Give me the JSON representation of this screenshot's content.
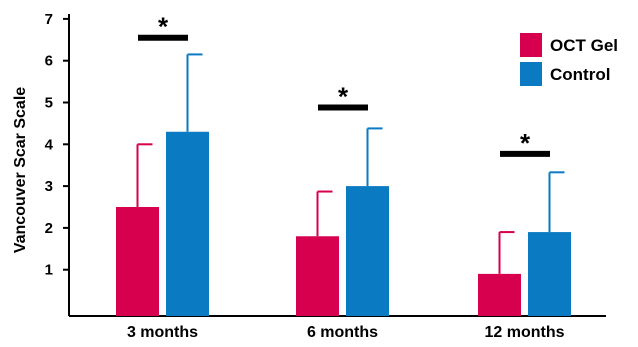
{
  "chart_data": {
    "type": "bar",
    "categories": [
      "3 months",
      "6 months",
      "12 months"
    ],
    "series": [
      {
        "name": "OCT Gel",
        "color": "#d6004f",
        "values": [
          2.5,
          1.8,
          0.9
        ],
        "error_upper": [
          4.0,
          2.87,
          1.9
        ]
      },
      {
        "name": "Control",
        "color": "#0a7ac2",
        "values": [
          4.3,
          3.0,
          1.9
        ],
        "error_upper": [
          6.15,
          4.38,
          3.33
        ]
      }
    ],
    "title": "",
    "xlabel": "",
    "ylabel": "Vancouver Scar Scale",
    "ylim": [
      0,
      7
    ],
    "yticks": [
      "1",
      "2",
      "3",
      "4",
      "5",
      "6",
      "7"
    ],
    "significance": [
      {
        "category": "3 months",
        "label": "*",
        "level": 6.55
      },
      {
        "category": "6 months",
        "label": "*",
        "level": 4.88
      },
      {
        "category": "12 months",
        "label": "*",
        "level": 3.77
      }
    ],
    "legend_position": "top-right",
    "grid": false
  }
}
